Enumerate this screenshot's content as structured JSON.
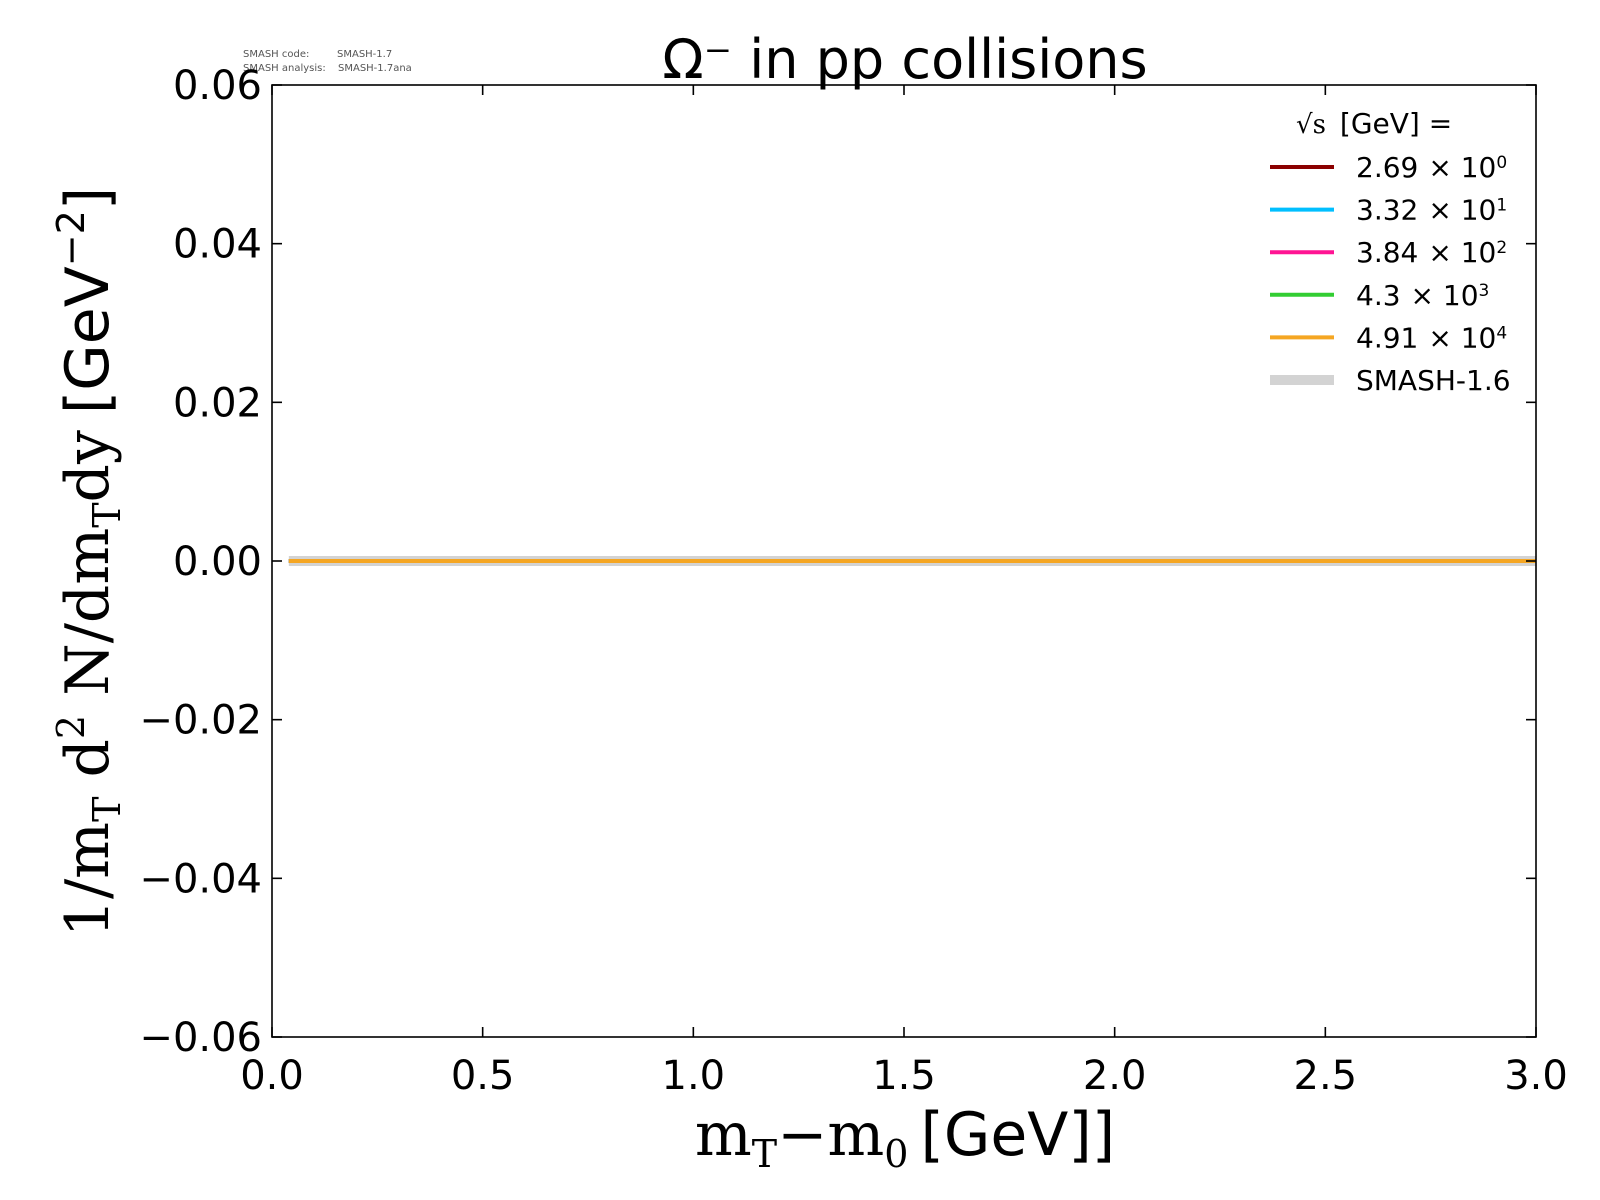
{
  "meta": {
    "code_label": "SMASH code:",
    "code_value": "SMASH-1.7",
    "analysis_label": "SMASH analysis:",
    "analysis_value": "SMASH-1.7ana"
  },
  "chart_data": {
    "type": "line",
    "title": "Ω⁻ in pp collisions",
    "xlabel": {
      "var": "m",
      "sub": "T",
      "minus": "−",
      "var2": "m",
      "sub2": "0",
      "unit": "[GeV]"
    },
    "ylabel": {
      "prefix": "1/m",
      "sub1": "T",
      "d": " d",
      "sup": "2",
      "rest": " N/dm",
      "sub2": "T",
      "dy": "dy",
      "unit": "[GeV",
      "unit_sup": "−2",
      "unit_close": "]"
    },
    "xlim": [
      0.0,
      3.0
    ],
    "ylim": [
      -0.06,
      0.06
    ],
    "xticks": [
      "0.0",
      "0.5",
      "1.0",
      "1.5",
      "2.0",
      "2.5",
      "3.0"
    ],
    "yticks": [
      "−0.06",
      "−0.04",
      "−0.02",
      "0.00",
      "0.02",
      "0.04",
      "0.06"
    ],
    "grid": false,
    "legend": {
      "placement": "top-right",
      "title_sqrt": "√s",
      "title_rest": "[GeV] ="
    },
    "series": [
      {
        "name_mant": "2.69",
        "name_exp": "0",
        "color": "#8b0000",
        "width": 4,
        "x": [
          0.04,
          3.0
        ],
        "y": [
          0.0,
          0.0
        ]
      },
      {
        "name_mant": "3.32",
        "name_exp": "1",
        "color": "#00bfff",
        "width": 4,
        "x": [
          0.04,
          3.0
        ],
        "y": [
          0.0,
          0.0
        ]
      },
      {
        "name_mant": "3.84",
        "name_exp": "2",
        "color": "#ff1493",
        "width": 4,
        "x": [
          0.04,
          3.0
        ],
        "y": [
          0.0,
          0.0
        ]
      },
      {
        "name_mant": "4.3",
        "name_exp": "3",
        "color": "#32cd32",
        "width": 4,
        "x": [
          0.04,
          3.0
        ],
        "y": [
          0.0,
          0.0
        ]
      },
      {
        "name_mant": "4.91",
        "name_exp": "4",
        "color": "#f5a623",
        "width": 4,
        "x": [
          0.04,
          3.0
        ],
        "y": [
          0.0,
          0.0
        ]
      },
      {
        "name": "SMASH-1.6",
        "color": "#d3d3d3",
        "width": 10,
        "x": [
          0.04,
          3.0
        ],
        "y": [
          0.0,
          0.0
        ]
      }
    ],
    "times_sign": "×",
    "ten": "10"
  }
}
